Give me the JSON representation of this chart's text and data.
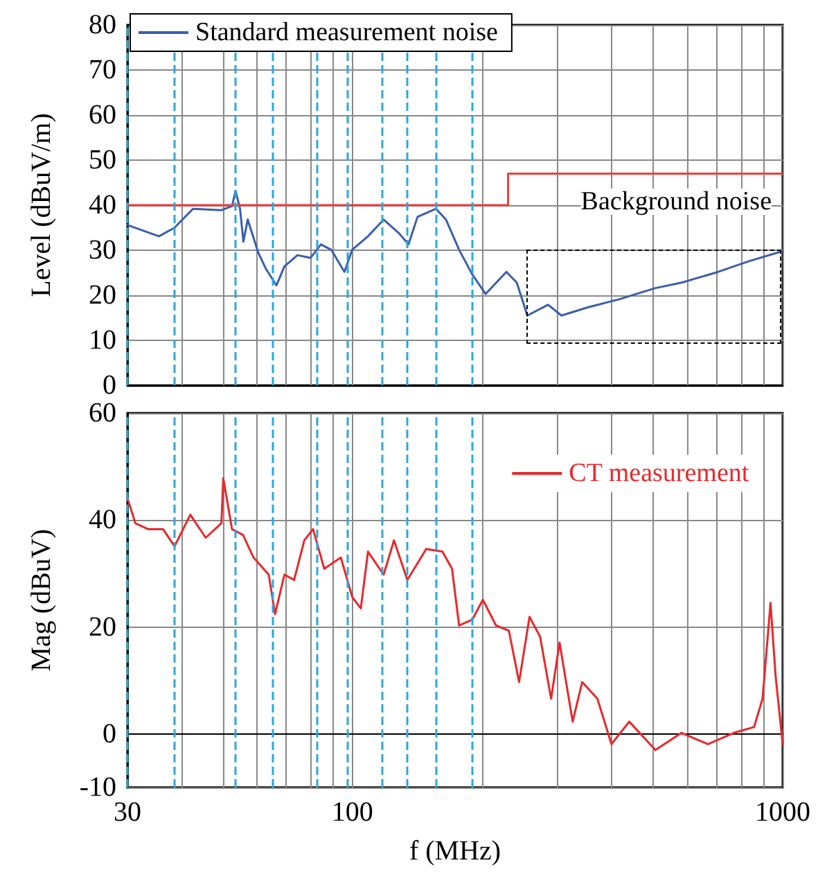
{
  "chart_data": [
    {
      "type": "line",
      "ylabel": "Level (dBuV/m)",
      "log": "x",
      "xlim": [
        30,
        1000
      ],
      "xticks": [
        30,
        {
          "value": 40,
          "label": null
        },
        {
          "value": 50,
          "label": null
        },
        {
          "value": 60,
          "label": null
        },
        {
          "value": 70,
          "label": null
        },
        {
          "value": 80,
          "label": null
        },
        {
          "value": 90,
          "label": null
        },
        100,
        {
          "value": 200,
          "label": null
        },
        {
          "value": 300,
          "label": null
        },
        {
          "value": 400,
          "label": null
        },
        {
          "value": 500,
          "label": null
        },
        {
          "value": 600,
          "label": null
        },
        {
          "value": 700,
          "label": null
        },
        {
          "value": 800,
          "label": null
        },
        {
          "value": 900,
          "label": null
        },
        1000
      ],
      "ylim": [
        0,
        80
      ],
      "yticks": [
        0,
        10,
        20,
        30,
        40,
        50,
        60,
        70,
        80
      ],
      "tick_labels": "y",
      "grid": true,
      "legend": "top left",
      "marker": "none",
      "series": [
        {
          "name": "Standard measurement noise",
          "color": "#3a5fb0",
          "x": [
            30,
            35.5,
            38.6,
            42.6,
            49.6,
            52.5,
            53.5,
            54.8,
            55.8,
            57.1,
            60.4,
            63,
            66.6,
            69.5,
            74.5,
            79.9,
            84.5,
            89.3,
            95.8,
            99.9,
            108.7,
            118.2,
            128.5,
            135,
            141.7,
            156.4,
            165,
            177,
            190,
            204,
            228,
            241,
            255,
            285,
            306,
            352,
            416,
            506,
            582,
            708,
            837,
            1000
          ],
          "values": [
            35.6,
            33.1,
            35,
            39.2,
            38.9,
            39.8,
            43.2,
            39.2,
            31.9,
            36.8,
            29.5,
            25.8,
            22.2,
            26.4,
            28.9,
            28.3,
            31.3,
            30.1,
            25.2,
            30.1,
            33.1,
            36.8,
            33.7,
            31.3,
            37.4,
            39.2,
            36.8,
            30.1,
            24.6,
            20.3,
            25.2,
            22.8,
            15.5,
            17.9,
            15.5,
            17.3,
            19.1,
            21.6,
            22.8,
            25.2,
            27.6,
            29.8
          ]
        },
        {
          "color": "#f03c3c",
          "x": [
            30,
            230,
            230,
            1000
          ],
          "values": [
            40,
            40,
            47,
            47
          ]
        }
      ],
      "ref_lines": [
        {
          "axis": "x",
          "value": 30,
          "color": "#29a8e0",
          "line_style": "dashed"
        },
        {
          "axis": "x",
          "value": 38.4,
          "color": "#29a8e0",
          "line_style": "dashed"
        },
        {
          "axis": "x",
          "value": 53.5,
          "color": "#29a8e0",
          "line_style": "dashed"
        },
        {
          "axis": "x",
          "value": 65.3,
          "color": "#29a8e0",
          "line_style": "dashed"
        },
        {
          "axis": "x",
          "value": 82.4,
          "color": "#29a8e0",
          "line_style": "dashed"
        },
        {
          "axis": "x",
          "value": 97.1,
          "color": "#29a8e0",
          "line_style": "dashed"
        },
        {
          "axis": "x",
          "value": 117,
          "color": "#29a8e0",
          "line_style": "dashed"
        },
        {
          "axis": "x",
          "value": 134,
          "color": "#29a8e0",
          "line_style": "dashed"
        },
        {
          "axis": "x",
          "value": 156,
          "color": "#29a8e0",
          "line_style": "dashed"
        },
        {
          "axis": "x",
          "value": 189,
          "color": "#29a8e0",
          "line_style": "dashed"
        }
      ],
      "annotations": [
        "Background noise"
      ]
    },
    {
      "type": "line",
      "xlabel": "f (MHz)",
      "ylabel": "Mag (dBuV)",
      "log": "x",
      "xlim": [
        30,
        1000
      ],
      "xticks": [
        30,
        {
          "value": 40,
          "label": null
        },
        {
          "value": 50,
          "label": null
        },
        {
          "value": 60,
          "label": null
        },
        {
          "value": 70,
          "label": null
        },
        {
          "value": 80,
          "label": null
        },
        {
          "value": 90,
          "label": null
        },
        100,
        {
          "value": 200,
          "label": null
        },
        {
          "value": 300,
          "label": null
        },
        {
          "value": 400,
          "label": null
        },
        {
          "value": 500,
          "label": null
        },
        {
          "value": 600,
          "label": null
        },
        {
          "value": 700,
          "label": null
        },
        {
          "value": 800,
          "label": null
        },
        {
          "value": 900,
          "label": null
        },
        1000
      ],
      "ylim": [
        -10,
        60
      ],
      "yticks": [
        -10,
        0,
        20,
        40,
        60
      ],
      "grid": true,
      "legend": "top right",
      "marker": "none",
      "series": [
        {
          "name": "CT measurement",
          "color": "#e8282b",
          "x": [
            30,
            31.3,
            33.5,
            36.3,
            38.6,
            42,
            45.6,
            49.6,
            50.1,
            52.5,
            55.7,
            58.9,
            63.9,
            66.1,
            69.5,
            73.2,
            77.3,
            81,
            86,
            94,
            99.9,
            104.6,
            108.7,
            118.2,
            124.9,
            134.2,
            148.4,
            161.9,
            170.4,
            177,
            190,
            201,
            215.6,
            231,
            244,
            258,
            273,
            289.6,
            303,
            325,
            342,
            371,
            400,
            440,
            506,
            582,
            670,
            770,
            858,
            898,
            937,
            963,
            1000
          ],
          "values": [
            44.1,
            39.4,
            38.3,
            38.3,
            35.1,
            41,
            36.7,
            39.4,
            47.8,
            38.3,
            37.2,
            33,
            29.8,
            22.4,
            29.8,
            28.8,
            36.2,
            38.3,
            30.9,
            33,
            25.6,
            23.5,
            34.1,
            29.8,
            36.2,
            28.8,
            34.6,
            34.1,
            30.9,
            20.3,
            21.4,
            25.1,
            20.3,
            19.3,
            9.7,
            21.9,
            18.2,
            6.6,
            17.1,
            2.3,
            9.7,
            6.6,
            -1.9,
            2.3,
            -3,
            0.2,
            -1.9,
            0.2,
            1.3,
            6.6,
            24.5,
            10.8,
            -1.9
          ]
        }
      ],
      "ref_lines": [
        {
          "axis": "x",
          "value": 30,
          "color": "#29a8e0",
          "line_style": "dashed"
        },
        {
          "axis": "x",
          "value": 38.4,
          "color": "#29a8e0",
          "line_style": "dashed"
        },
        {
          "axis": "x",
          "value": 53.5,
          "color": "#29a8e0",
          "line_style": "dashed"
        },
        {
          "axis": "x",
          "value": 65.3,
          "color": "#29a8e0",
          "line_style": "dashed"
        },
        {
          "axis": "x",
          "value": 82.4,
          "color": "#29a8e0",
          "line_style": "dashed"
        },
        {
          "axis": "x",
          "value": 97.1,
          "color": "#29a8e0",
          "line_style": "dashed"
        },
        {
          "axis": "x",
          "value": 117,
          "color": "#29a8e0",
          "line_style": "dashed"
        },
        {
          "axis": "x",
          "value": 134,
          "color": "#29a8e0",
          "line_style": "dashed"
        },
        {
          "axis": "x",
          "value": 156,
          "color": "#29a8e0",
          "line_style": "dashed"
        },
        {
          "axis": "x",
          "value": 189,
          "color": "#29a8e0",
          "line_style": "dashed"
        }
      ]
    }
  ]
}
